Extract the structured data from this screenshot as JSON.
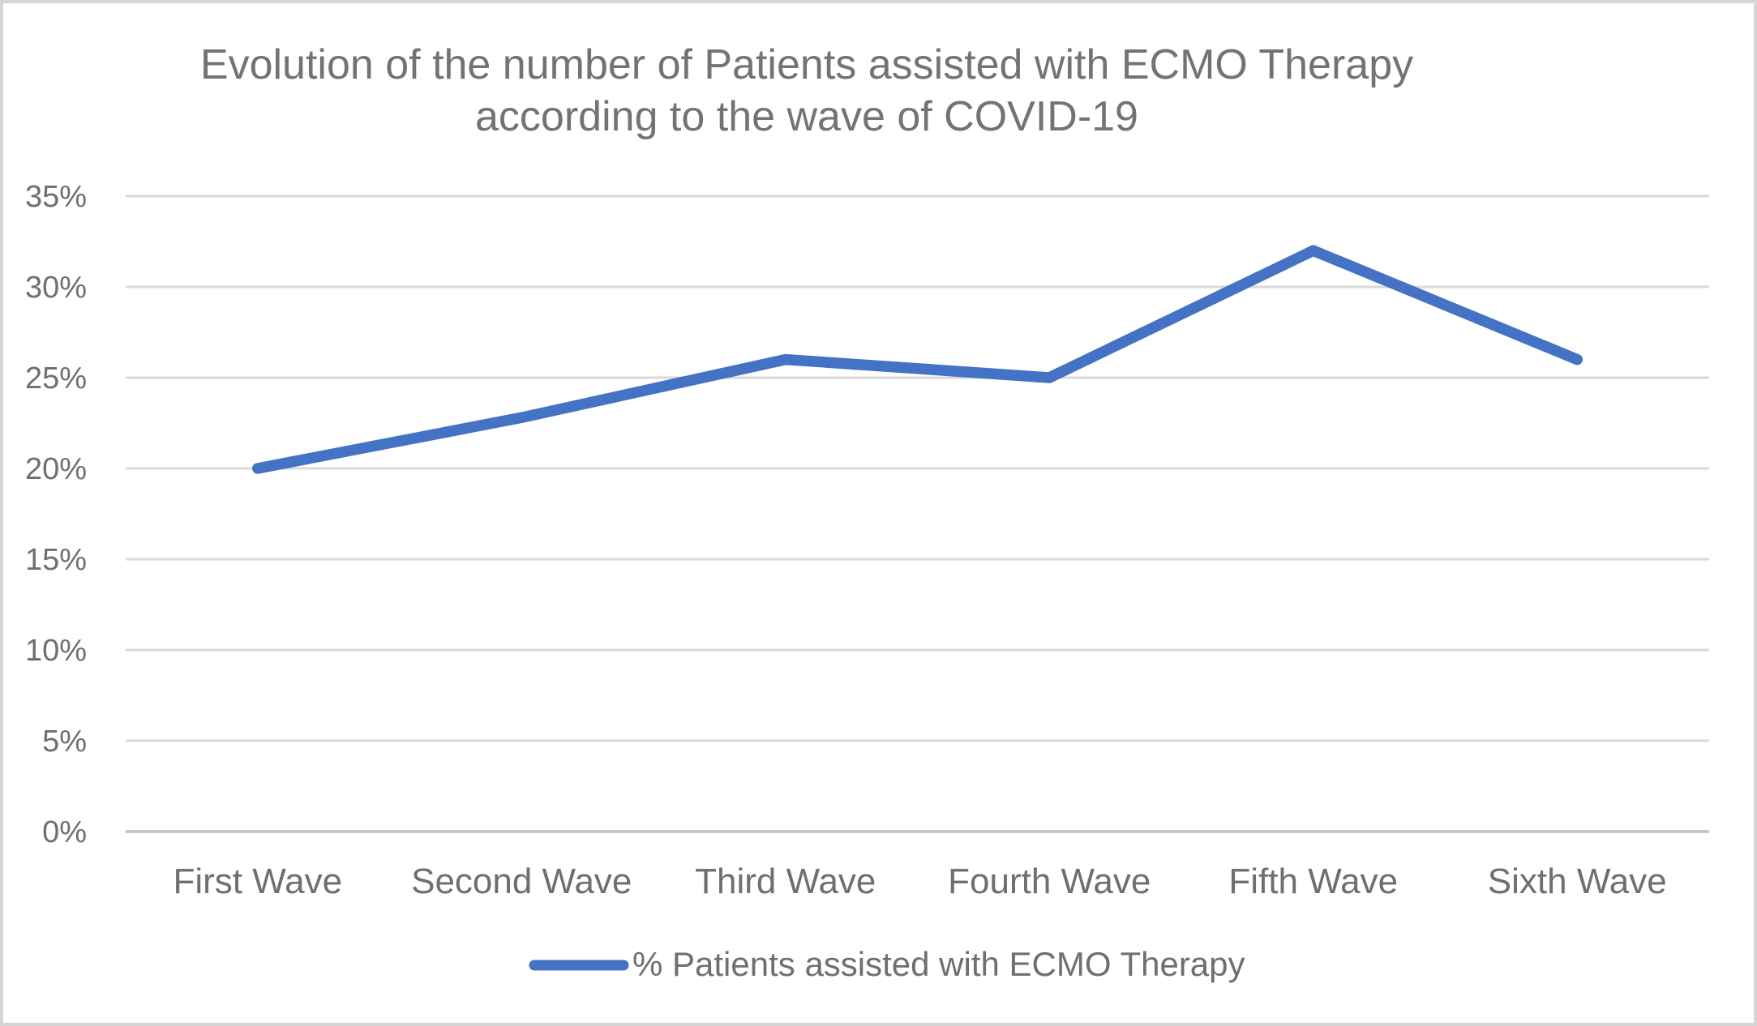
{
  "title": {
    "line1": "Evolution of the number of Patients assisted with ECMO Therapy",
    "line2": "according to the wave of COVID-19",
    "full": "Evolution of the number of Patients assisted with ECMO Therapy according to the wave of COVID-19",
    "color": "#737373"
  },
  "chart_data": {
    "type": "line",
    "title": "Evolution of the number of Patients assisted with ECMO Therapy according to the wave of COVID-19",
    "categories": [
      "First Wave",
      "Second Wave",
      "Third Wave",
      "Fourth Wave",
      "Fifth Wave",
      "Sixth Wave"
    ],
    "series": [
      {
        "name": "% Patients assisted with ECMO Therapy",
        "values": [
          20,
          22.8,
          26,
          25,
          32,
          26
        ],
        "color": "#4472C4"
      }
    ],
    "xlabel": "",
    "ylabel": "",
    "ylim": [
      0,
      35
    ],
    "ytick_step": 5,
    "ytick_labels_top_to_bottom": [
      "35%",
      "30%",
      "25%",
      "20%",
      "15%",
      "10%",
      "5%",
      "0%"
    ],
    "grid": true,
    "legend_position": "bottom"
  },
  "legend": {
    "label": "% Patients assisted with ECMO Therapy",
    "swatch_color": "#4472C4"
  },
  "colors": {
    "line": "#4472C4",
    "gridline": "#D9D9D9",
    "axis_line": "#C8C8C8",
    "tick_label": "#6F6F6F",
    "frame_border": "#D6D6D6",
    "background": "#FFFFFF"
  }
}
